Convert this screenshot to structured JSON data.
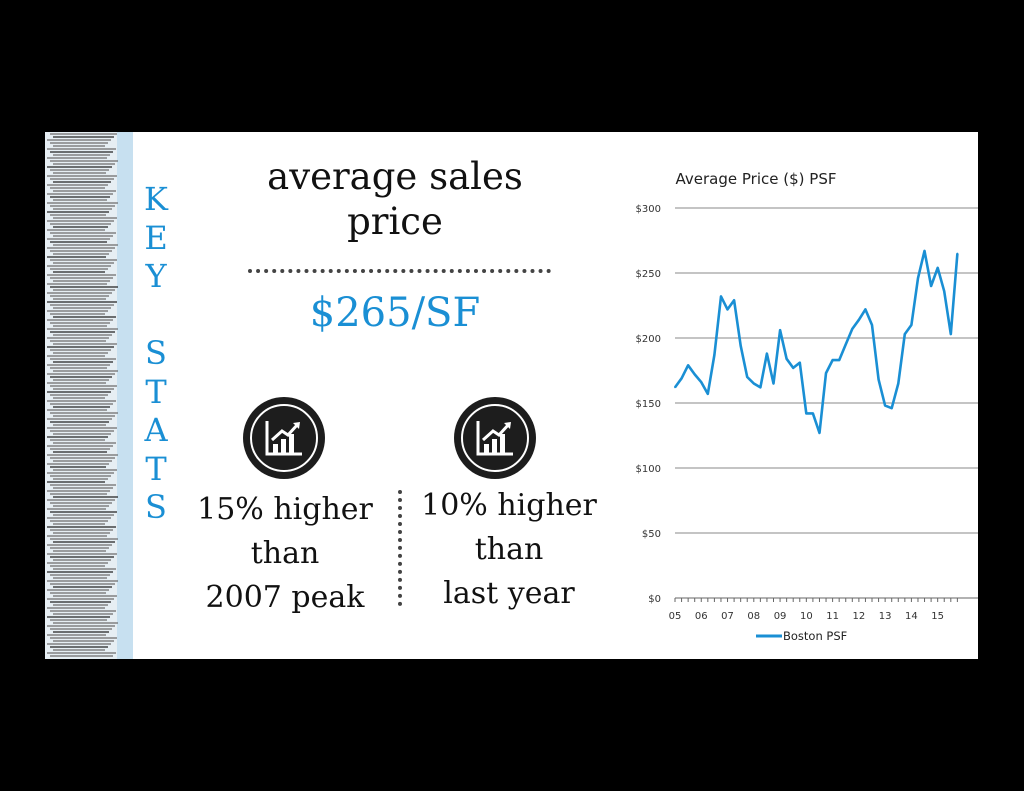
{
  "slide": {
    "key_stats_letters": [
      "K",
      "E",
      "Y",
      "",
      "S",
      "T",
      "A",
      "T",
      "S"
    ],
    "headline_line1": "average sales",
    "headline_line2": "price",
    "price_value": "$265/SF",
    "stat_left": {
      "line1": "15% higher",
      "line2": "than",
      "line3": "2007 peak",
      "icon": "growth-chart-icon"
    },
    "stat_right": {
      "line1": "10% higher",
      "line2": "than",
      "line3": "last year",
      "icon": "growth-chart-icon"
    },
    "accent_color": "#1a8fd4"
  },
  "chart_data": {
    "type": "line",
    "title": "Average Price ($) PSF",
    "xlabel": "",
    "ylabel": "",
    "x_tick_labels": [
      "05",
      "06",
      "07",
      "08",
      "09",
      "10",
      "11",
      "12",
      "13",
      "14",
      "15"
    ],
    "y_tick_labels": [
      "$0",
      "$50",
      "$100",
      "$150",
      "$200",
      "$250",
      "$300"
    ],
    "ylim": [
      0,
      300
    ],
    "grid": "horizontal",
    "legend_position": "bottom",
    "series": [
      {
        "name": "Boston PSF",
        "color": "#1a8fd4",
        "x": [
          2005.0,
          2005.25,
          2005.5,
          2005.75,
          2006.0,
          2006.25,
          2006.5,
          2006.75,
          2007.0,
          2007.25,
          2007.5,
          2007.75,
          2008.0,
          2008.25,
          2008.5,
          2008.75,
          2009.0,
          2009.25,
          2009.5,
          2009.75,
          2010.0,
          2010.25,
          2010.5,
          2010.75,
          2011.0,
          2011.25,
          2011.5,
          2011.75,
          2012.0,
          2012.25,
          2012.5,
          2012.75,
          2013.0,
          2013.25,
          2013.5,
          2013.75,
          2014.0,
          2014.25,
          2014.5,
          2014.75,
          2015.0,
          2015.25,
          2015.5,
          2015.75
        ],
        "values": [
          162,
          169,
          179,
          172,
          166,
          157,
          187,
          232,
          222,
          229,
          194,
          170,
          165,
          162,
          188,
          165,
          206,
          184,
          177,
          181,
          142,
          142,
          127,
          173,
          183,
          183,
          195,
          207,
          214,
          222,
          210,
          168,
          148,
          146,
          165,
          203,
          210,
          246,
          267,
          240,
          254,
          236,
          203,
          265
        ]
      }
    ]
  }
}
